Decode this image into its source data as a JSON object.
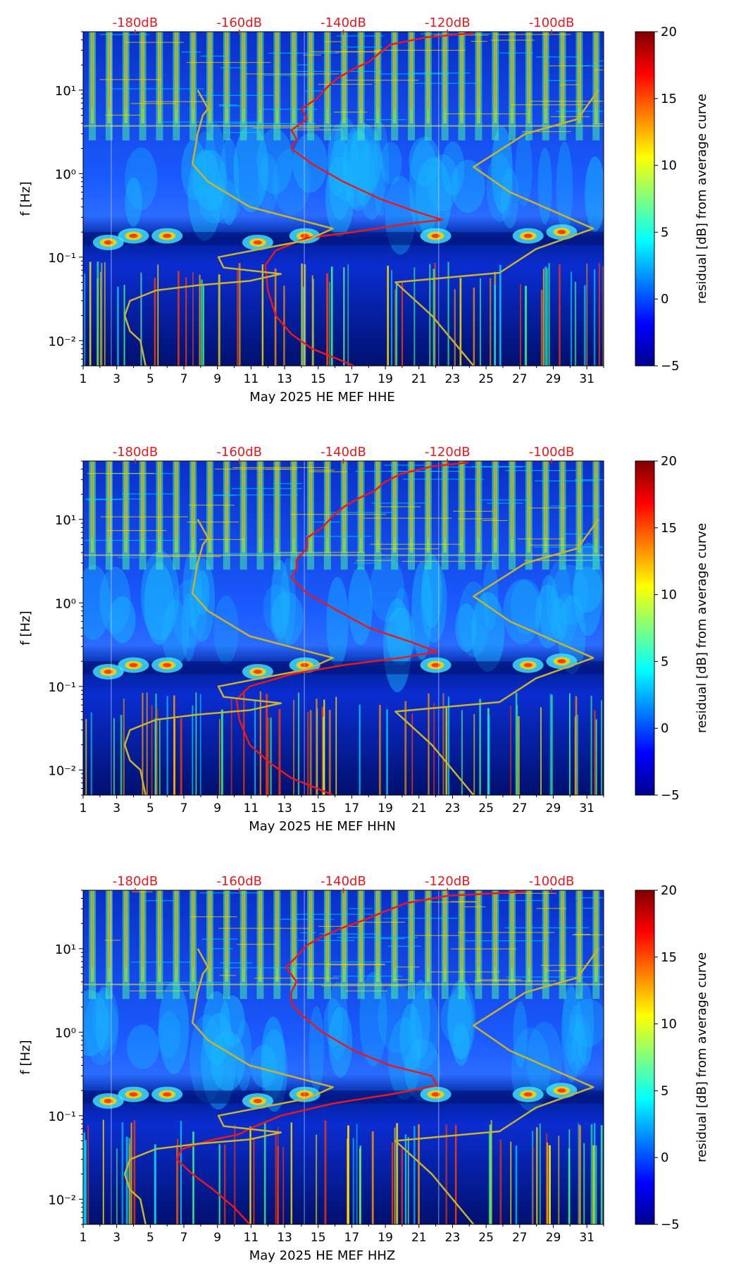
{
  "chart_data": [
    {
      "type": "heatmap",
      "channel": "HHE",
      "xlabel": "May 2025 HE MEF  HHE",
      "ylabel": "f [Hz]",
      "x_ticks": [
        "1",
        "3",
        "5",
        "7",
        "9",
        "11",
        "13",
        "15",
        "17",
        "19",
        "21",
        "23",
        "25",
        "27",
        "29",
        "31"
      ],
      "x_range": [
        1,
        32
      ],
      "y_range": [
        0.005,
        50
      ],
      "y_ticks": [
        {
          "value": 0.01,
          "label": "10⁻²"
        },
        {
          "value": 0.1,
          "label": "10⁻¹"
        },
        {
          "value": 1,
          "label": "10⁰"
        },
        {
          "value": 10,
          "label": "10¹"
        }
      ],
      "db_ticks": [
        "-180dB",
        "-160dB",
        "-140dB",
        "-120dB",
        "-100dB"
      ],
      "db_range": [
        -190,
        -90
      ],
      "colorbar": {
        "label": "residual [dB] from average curve",
        "range": [
          -5,
          20
        ],
        "ticks": [
          "−5",
          "0",
          "5",
          "10",
          "15",
          "20"
        ]
      },
      "series": [
        {
          "name": "average-psd",
          "color": "#e8191e",
          "points": [
            [
              -138,
              0.005
            ],
            [
              -141,
              0.006
            ],
            [
              -146,
              0.008
            ],
            [
              -150,
              0.012
            ],
            [
              -153,
              0.02
            ],
            [
              -154.5,
              0.04
            ],
            [
              -155,
              0.08
            ],
            [
              -153,
              0.12
            ],
            [
              -147,
              0.17
            ],
            [
              -138,
              0.2
            ],
            [
              -128,
              0.25
            ],
            [
              -121,
              0.28
            ],
            [
              -126,
              0.35
            ],
            [
              -133,
              0.5
            ],
            [
              -140,
              0.8
            ],
            [
              -146,
              1.3
            ],
            [
              -150,
              2.0
            ],
            [
              -149,
              2.6
            ],
            [
              -150,
              3.3
            ],
            [
              -147,
              4.5
            ],
            [
              -148,
              6
            ],
            [
              -145,
              8
            ],
            [
              -143,
              11
            ],
            [
              -141,
              14
            ],
            [
              -138,
              18
            ],
            [
              -135,
              22
            ],
            [
              -133,
              28
            ],
            [
              -131,
              35
            ],
            [
              -124,
              43
            ],
            [
              -115,
              48
            ]
          ]
        },
        {
          "name": "nlnm-nhnm",
          "color": "#c8b331",
          "points": [
            [
              -178,
              0.005
            ],
            [
              -179,
              0.01
            ],
            [
              -181,
              0.013
            ],
            [
              -182,
              0.02
            ],
            [
              -181,
              0.03
            ],
            [
              -176,
              0.04
            ],
            [
              -168,
              0.046
            ],
            [
              -158,
              0.052
            ],
            [
              -152,
              0.063
            ],
            [
              -163,
              0.075
            ],
            [
              -164,
              0.1
            ],
            [
              -147,
              0.16
            ],
            [
              -142,
              0.22
            ],
            [
              -158,
              0.4
            ],
            [
              -166,
              0.8
            ],
            [
              -169,
              1.3
            ],
            [
              -168,
              3
            ],
            [
              -167,
              5
            ],
            [
              -166,
              6
            ],
            [
              -168,
              10
            ]
          ]
        },
        {
          "name": "nhnm",
          "color": "#c8b331",
          "points": [
            [
              -115,
              0.005
            ],
            [
              -123,
              0.02
            ],
            [
              -130,
              0.05
            ],
            [
              -110,
              0.065
            ],
            [
              -103,
              0.125
            ],
            [
              -92,
              0.22
            ],
            [
              -108,
              0.6
            ],
            [
              -115,
              1.2
            ],
            [
              -105,
              3
            ],
            [
              -95,
              4.5
            ],
            [
              -91,
              10
            ]
          ]
        }
      ]
    },
    {
      "type": "heatmap",
      "channel": "HHN",
      "xlabel": "May 2025 HE MEF  HHN",
      "ylabel": "f [Hz]",
      "x_ticks": [
        "1",
        "3",
        "5",
        "7",
        "9",
        "11",
        "13",
        "15",
        "17",
        "19",
        "21",
        "23",
        "25",
        "27",
        "29",
        "31"
      ],
      "x_range": [
        1,
        32
      ],
      "y_range": [
        0.005,
        50
      ],
      "y_ticks": [
        {
          "value": 0.01,
          "label": "10⁻²"
        },
        {
          "value": 0.1,
          "label": "10⁻¹"
        },
        {
          "value": 1,
          "label": "10⁰"
        },
        {
          "value": 10,
          "label": "10¹"
        }
      ],
      "db_ticks": [
        "-180dB",
        "-160dB",
        "-140dB",
        "-120dB",
        "-100dB"
      ],
      "db_range": [
        -190,
        -90
      ],
      "colorbar": {
        "label": "residual [dB] from average curve",
        "range": [
          -5,
          20
        ],
        "ticks": [
          "−5",
          "0",
          "5",
          "10",
          "15",
          "20"
        ]
      },
      "series": [
        {
          "name": "average-psd",
          "color": "#e8191e",
          "points": [
            [
              -142,
              0.005
            ],
            [
              -145,
              0.006
            ],
            [
              -150,
              0.008
            ],
            [
              -154,
              0.012
            ],
            [
              -158,
              0.02
            ],
            [
              -160,
              0.04
            ],
            [
              -160.5,
              0.07
            ],
            [
              -158,
              0.1
            ],
            [
              -150,
              0.14
            ],
            [
              -140,
              0.18
            ],
            [
              -129,
              0.22
            ],
            [
              -122,
              0.26
            ],
            [
              -127,
              0.34
            ],
            [
              -135,
              0.5
            ],
            [
              -141,
              0.8
            ],
            [
              -147,
              1.3
            ],
            [
              -150,
              2.0
            ],
            [
              -149,
              2.6
            ],
            [
              -149,
              3.3
            ],
            [
              -147,
              4.5
            ],
            [
              -147,
              6
            ],
            [
              -144,
              8
            ],
            [
              -142,
              11
            ],
            [
              -140,
              14
            ],
            [
              -137,
              18
            ],
            [
              -134,
              22
            ],
            [
              -132,
              28
            ],
            [
              -129,
              35
            ],
            [
              -123,
              43
            ],
            [
              -116,
              48
            ]
          ]
        },
        {
          "name": "nlnm-nhnm",
          "color": "#c8b331",
          "points": [
            [
              -178,
              0.005
            ],
            [
              -179,
              0.01
            ],
            [
              -181,
              0.013
            ],
            [
              -182,
              0.02
            ],
            [
              -181,
              0.03
            ],
            [
              -176,
              0.04
            ],
            [
              -168,
              0.046
            ],
            [
              -158,
              0.052
            ],
            [
              -152,
              0.063
            ],
            [
              -163,
              0.075
            ],
            [
              -164,
              0.1
            ],
            [
              -147,
              0.16
            ],
            [
              -142,
              0.22
            ],
            [
              -158,
              0.4
            ],
            [
              -166,
              0.8
            ],
            [
              -169,
              1.3
            ],
            [
              -168,
              3
            ],
            [
              -167,
              5
            ],
            [
              -166,
              6
            ],
            [
              -168,
              10
            ]
          ]
        },
        {
          "name": "nhnm",
          "color": "#c8b331",
          "points": [
            [
              -115,
              0.005
            ],
            [
              -123,
              0.02
            ],
            [
              -130,
              0.05
            ],
            [
              -110,
              0.065
            ],
            [
              -103,
              0.125
            ],
            [
              -92,
              0.22
            ],
            [
              -108,
              0.6
            ],
            [
              -115,
              1.2
            ],
            [
              -105,
              3
            ],
            [
              -95,
              4.5
            ],
            [
              -91,
              10
            ]
          ]
        }
      ]
    },
    {
      "type": "heatmap",
      "channel": "HHZ",
      "xlabel": "May 2025 HE MEF  HHZ",
      "ylabel": "f [Hz]",
      "x_ticks": [
        "1",
        "3",
        "5",
        "7",
        "9",
        "11",
        "13",
        "15",
        "17",
        "19",
        "21",
        "23",
        "25",
        "27",
        "29",
        "31"
      ],
      "x_range": [
        1,
        32
      ],
      "y_range": [
        0.005,
        50
      ],
      "y_ticks": [
        {
          "value": 0.01,
          "label": "10⁻²"
        },
        {
          "value": 0.1,
          "label": "10⁻¹"
        },
        {
          "value": 1,
          "label": "10⁰"
        },
        {
          "value": 10,
          "label": "10¹"
        }
      ],
      "db_ticks": [
        "-180dB",
        "-160dB",
        "-140dB",
        "-120dB",
        "-100dB"
      ],
      "db_range": [
        -190,
        -90
      ],
      "colorbar": {
        "label": "residual [dB] from average curve",
        "range": [
          -5,
          20
        ],
        "ticks": [
          "−5",
          "0",
          "5",
          "10",
          "15",
          "20"
        ]
      },
      "series": [
        {
          "name": "average-psd",
          "color": "#e8191e",
          "points": [
            [
              -158,
              0.005
            ],
            [
              -161,
              0.008
            ],
            [
              -165,
              0.013
            ],
            [
              -169,
              0.02
            ],
            [
              -172,
              0.03
            ],
            [
              -171,
              0.04
            ],
            [
              -166,
              0.05
            ],
            [
              -160,
              0.06
            ],
            [
              -158,
              0.07
            ],
            [
              -152,
              0.1
            ],
            [
              -142,
              0.14
            ],
            [
              -131,
              0.18
            ],
            [
              -122,
              0.23
            ],
            [
              -123,
              0.3
            ],
            [
              -131,
              0.4
            ],
            [
              -138,
              0.6
            ],
            [
              -144,
              1.0
            ],
            [
              -148,
              1.6
            ],
            [
              -150,
              2.2
            ],
            [
              -150,
              3
            ],
            [
              -149,
              4
            ],
            [
              -151,
              6
            ],
            [
              -149,
              8
            ],
            [
              -147,
              11
            ],
            [
              -144,
              14
            ],
            [
              -140,
              18
            ],
            [
              -136,
              22
            ],
            [
              -132,
              28
            ],
            [
              -128,
              35
            ],
            [
              -120,
              43
            ],
            [
              -105,
              48
            ]
          ]
        },
        {
          "name": "nlnm-nhnm",
          "color": "#c8b331",
          "points": [
            [
              -178,
              0.005
            ],
            [
              -179,
              0.01
            ],
            [
              -181,
              0.013
            ],
            [
              -182,
              0.02
            ],
            [
              -181,
              0.03
            ],
            [
              -176,
              0.04
            ],
            [
              -168,
              0.046
            ],
            [
              -158,
              0.052
            ],
            [
              -152,
              0.063
            ],
            [
              -163,
              0.075
            ],
            [
              -164,
              0.1
            ],
            [
              -147,
              0.16
            ],
            [
              -142,
              0.22
            ],
            [
              -158,
              0.4
            ],
            [
              -166,
              0.8
            ],
            [
              -169,
              1.3
            ],
            [
              -168,
              3
            ],
            [
              -167,
              5
            ],
            [
              -166,
              6
            ],
            [
              -168,
              10
            ]
          ]
        },
        {
          "name": "nhnm",
          "color": "#c8b331",
          "points": [
            [
              -115,
              0.005
            ],
            [
              -123,
              0.02
            ],
            [
              -130,
              0.05
            ],
            [
              -110,
              0.065
            ],
            [
              -103,
              0.125
            ],
            [
              -92,
              0.22
            ],
            [
              -108,
              0.6
            ],
            [
              -115,
              1.2
            ],
            [
              -105,
              3
            ],
            [
              -95,
              4.5
            ],
            [
              -91,
              10
            ]
          ]
        }
      ]
    }
  ]
}
